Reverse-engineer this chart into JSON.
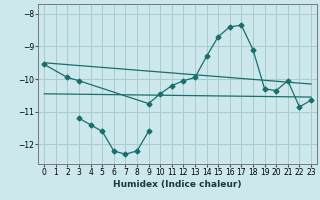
{
  "xlabel": "Humidex (Indice chaleur)",
  "background_color": "#cce8ec",
  "grid_color": "#aacccc",
  "line_color": "#1a6e6e",
  "xlim": [
    -0.5,
    23.5
  ],
  "ylim": [
    -12.6,
    -7.7
  ],
  "yticks": [
    -8,
    -9,
    -10,
    -11,
    -12
  ],
  "xticks": [
    0,
    1,
    2,
    3,
    4,
    5,
    6,
    7,
    8,
    9,
    10,
    11,
    12,
    13,
    14,
    15,
    16,
    17,
    18,
    19,
    20,
    21,
    22,
    23
  ],
  "line1_x": [
    0,
    23
  ],
  "line1_y": [
    -9.5,
    -10.15
  ],
  "line2_x": [
    0,
    23
  ],
  "line2_y": [
    -10.45,
    -10.55
  ],
  "line3_x": [
    0,
    2,
    3,
    9,
    10,
    11,
    12,
    13,
    14,
    15,
    16,
    17,
    18,
    19,
    20,
    21,
    22,
    23
  ],
  "line3_y": [
    -9.55,
    -9.95,
    -10.05,
    -10.75,
    -10.45,
    -10.2,
    -10.05,
    -9.95,
    -9.3,
    -8.7,
    -8.4,
    -8.35,
    -9.1,
    -10.3,
    -10.35,
    -10.05,
    -10.85,
    -10.65
  ],
  "line4_x": [
    3,
    4,
    5,
    6,
    7,
    8,
    9
  ],
  "line4_y": [
    -11.2,
    -11.4,
    -11.6,
    -12.2,
    -12.3,
    -12.2,
    -11.6
  ]
}
